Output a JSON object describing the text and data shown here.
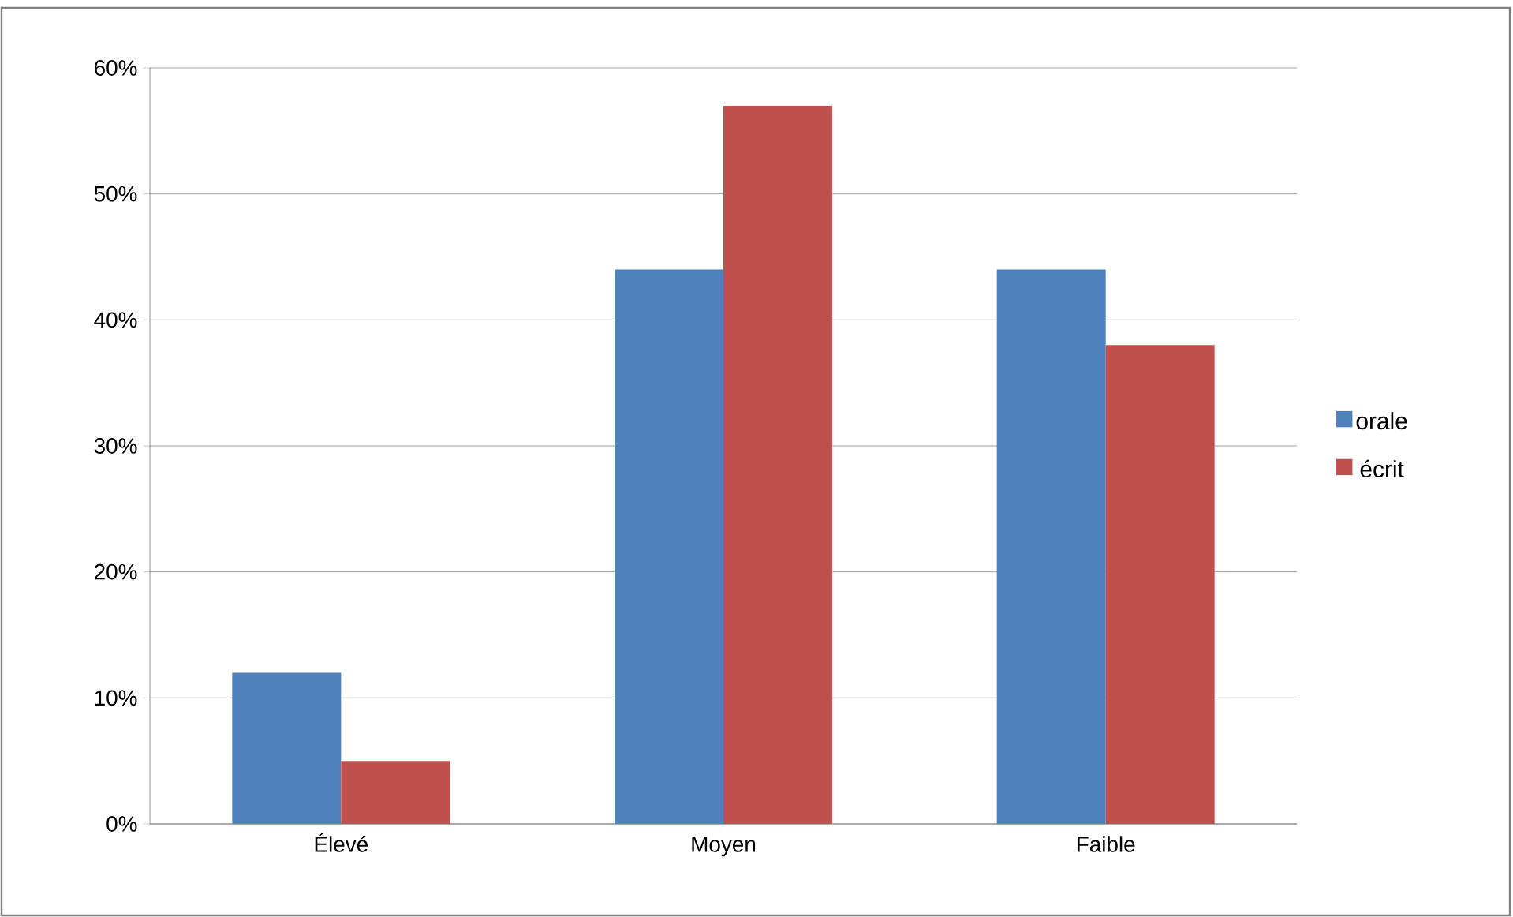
{
  "chart_data": {
    "type": "bar",
    "categories": [
      "Élevé",
      "Moyen",
      "Faible"
    ],
    "series": [
      {
        "name": "orale",
        "color": "#4f81bd",
        "values": [
          12,
          44,
          44
        ]
      },
      {
        "name": "écrit",
        "color": "#c0504d",
        "values": [
          5,
          57,
          38
        ]
      }
    ],
    "ylim": [
      0,
      60
    ],
    "yticks": [
      {
        "value": 0,
        "label": "0%"
      },
      {
        "value": 10,
        "label": "10%"
      },
      {
        "value": 20,
        "label": "20%"
      },
      {
        "value": 30,
        "label": "30%"
      },
      {
        "value": 40,
        "label": "40%"
      },
      {
        "value": 50,
        "label": "50%"
      },
      {
        "value": 60,
        "label": "60%"
      }
    ],
    "grid": "y",
    "legend": "right"
  }
}
